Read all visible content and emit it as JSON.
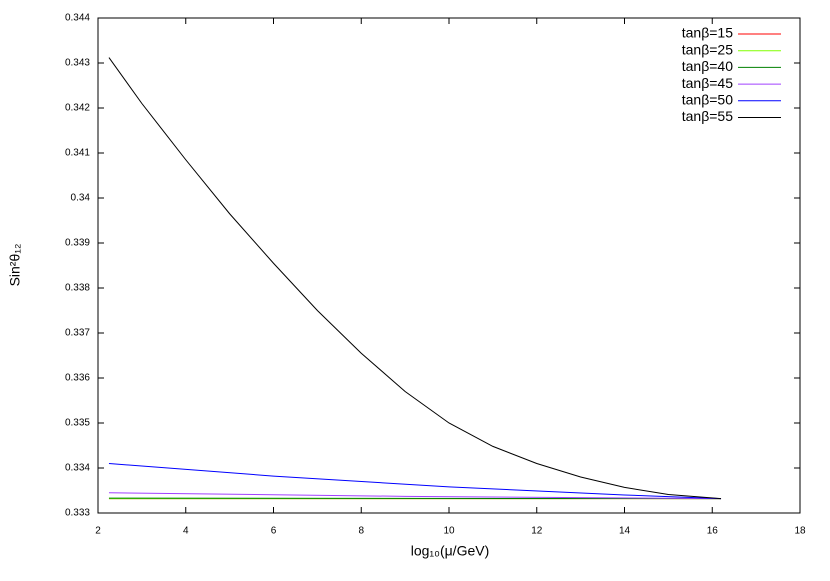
{
  "chart_data": {
    "type": "line",
    "xlabel": "log₁₀(μ/GeV)",
    "ylabel": "Sin²θ₁₂",
    "xlim": [
      2,
      18
    ],
    "xticks": [
      2,
      4,
      6,
      8,
      10,
      12,
      14,
      16,
      18
    ],
    "ylim": [
      0.333,
      0.344
    ],
    "yticks": [
      0.333,
      0.334,
      0.335,
      0.336,
      0.337,
      0.338,
      0.339,
      0.34,
      0.341,
      0.342,
      0.343,
      0.344
    ],
    "legend": "top-right",
    "series": [
      {
        "name": "tanβ=15",
        "color": "#ff0000",
        "x": [
          2.25,
          16.2
        ],
        "values": [
          0.33332,
          0.33332
        ]
      },
      {
        "name": "tanβ=25",
        "color": "#80ff00",
        "x": [
          2.25,
          16.2
        ],
        "values": [
          0.33332,
          0.33332
        ]
      },
      {
        "name": "tanβ=40",
        "color": "#008000",
        "x": [
          2.25,
          16.2
        ],
        "values": [
          0.33333,
          0.33332
        ]
      },
      {
        "name": "tanβ=45",
        "color": "#a040ff",
        "x": [
          2.25,
          9,
          16.2
        ],
        "values": [
          0.33345,
          0.33337,
          0.33332
        ]
      },
      {
        "name": "tanβ=50",
        "color": "#0000ff",
        "x": [
          2.25,
          6,
          10,
          14,
          16.2
        ],
        "values": [
          0.3341,
          0.33382,
          0.33358,
          0.3334,
          0.33332
        ]
      },
      {
        "name": "tanβ=55",
        "color": "#000000",
        "x": [
          2.25,
          3,
          4,
          5,
          6,
          7,
          8,
          9,
          10,
          11,
          12,
          13,
          14,
          15,
          16.2
        ],
        "values": [
          0.34312,
          0.3421,
          0.34085,
          0.33965,
          0.33855,
          0.3375,
          0.33655,
          0.3357,
          0.335,
          0.33448,
          0.3341,
          0.3338,
          0.33357,
          0.33341,
          0.33332
        ]
      }
    ]
  }
}
